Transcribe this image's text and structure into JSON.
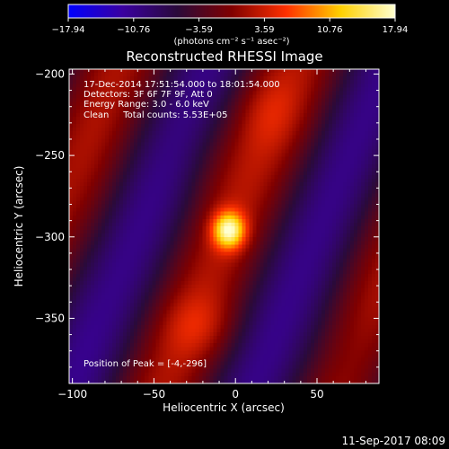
{
  "chart_data": {
    "type": "heatmap",
    "title": "Reconstructed RHESSI Image",
    "xlabel": "Heliocentric X (arcsec)",
    "ylabel": "Heliocentric Y (arcsec)",
    "xlim": [
      -102,
      88
    ],
    "ylim": [
      -390,
      -197
    ],
    "x_ticks": [
      -100,
      -50,
      0,
      50
    ],
    "x_tick_labels": [
      "−100",
      "−50",
      "0",
      "50"
    ],
    "y_ticks": [
      -200,
      -250,
      -300,
      -350
    ],
    "y_tick_labels": [
      "−200",
      "−250",
      "−300",
      "−350"
    ],
    "colorbar": {
      "min": -17.94,
      "max": 17.94,
      "tick_labels": [
        "−17.94",
        "−10.76",
        "−3.59",
        "3.59",
        "10.76",
        "17.94"
      ],
      "unit_label": "(photons cm⁻² s⁻¹ asec⁻²)",
      "colors": [
        "#0000ff",
        "#3a00a0",
        "#2a0a3a",
        "#800000",
        "#ff3000",
        "#ffd000",
        "#ffffd0"
      ]
    },
    "annotations": [
      "17-Dec-2014 17:51:54.000 to 18:01:54.000",
      "Detectors: 3F 6F 7F 9F, Att 0",
      "Energy Range: 3.0 - 6.0 keV",
      "Clean     Total counts: 5.53E+05"
    ],
    "peak": {
      "x": -4,
      "y": -296,
      "label": "Position of Peak = [-4,-296]"
    },
    "sources": [
      {
        "x": -4,
        "y": -296,
        "value": 17.94,
        "note": "main peak"
      },
      {
        "x": -22,
        "y": -355,
        "value": 6.0
      },
      {
        "x": 20,
        "y": -222,
        "value": 5.5
      }
    ],
    "grid": false,
    "legend": "colorbar top"
  },
  "footer": {
    "date": "11-Sep-2017 08:09"
  }
}
